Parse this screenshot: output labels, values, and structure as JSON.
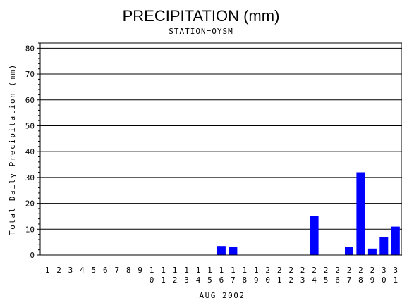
{
  "chart_data": {
    "type": "bar",
    "title": "PRECIPITATION (mm)",
    "subtitle": "STATION=OYSM",
    "xlabel": "AUG 2002",
    "ylabel": "Total Daily Precipitation (mm)",
    "ylim": [
      0,
      82
    ],
    "yticks": [
      0,
      10,
      20,
      30,
      40,
      50,
      60,
      70,
      80
    ],
    "categories": [
      "1",
      "2",
      "3",
      "4",
      "5",
      "6",
      "7",
      "8",
      "9",
      "10",
      "11",
      "12",
      "13",
      "14",
      "15",
      "16",
      "17",
      "18",
      "19",
      "20",
      "21",
      "22",
      "23",
      "24",
      "25",
      "26",
      "27",
      "28",
      "29",
      "30",
      "31"
    ],
    "values": [
      0,
      0,
      0,
      0,
      0,
      0,
      0,
      0,
      0,
      0,
      0,
      0,
      0,
      0,
      0,
      3.5,
      3.2,
      0,
      0,
      0,
      0,
      0,
      0,
      15,
      0,
      0,
      3,
      32,
      2.5,
      7,
      11
    ],
    "bar_color": "#0000ff",
    "grid": "horizontal"
  }
}
